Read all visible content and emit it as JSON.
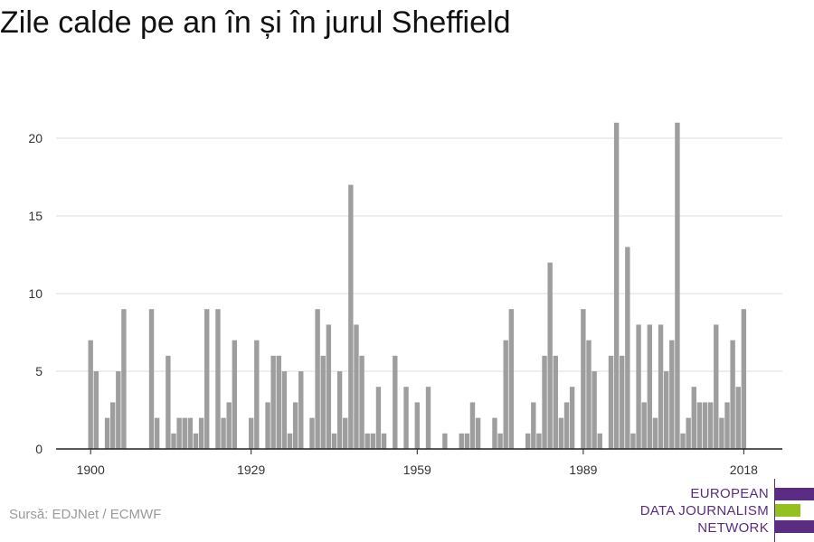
{
  "title": "Zile calde pe an în și în jurul Sheffield",
  "source": "Sursă: EDJNet / ECMWF",
  "logo": {
    "lines": [
      "EUROPEAN",
      "DATA JOURNALISM",
      "NETWORK"
    ],
    "colors": [
      "#5a2d82",
      "#94c11f",
      "#5a2d82"
    ]
  },
  "chart_data": {
    "type": "bar",
    "title": "Zile calde pe an în și în jurul Sheffield",
    "xlabel": "",
    "ylabel": "",
    "x_start": 1900,
    "x_end": 2018,
    "xticks": [
      1900,
      1929,
      1959,
      1989,
      2018
    ],
    "yticks": [
      0,
      5,
      10,
      15,
      20
    ],
    "ylim": [
      0,
      22.5
    ],
    "grid": true,
    "bar_color": "#9e9e9e",
    "values": [
      7,
      5,
      0,
      2,
      3,
      5,
      9,
      0,
      0,
      0,
      0,
      9,
      2,
      0,
      6,
      1,
      2,
      2,
      2,
      1,
      2,
      9,
      0,
      9,
      2,
      3,
      7,
      0,
      0,
      2,
      7,
      0,
      3,
      6,
      6,
      5,
      1,
      3,
      5,
      0,
      2,
      9,
      6,
      8,
      1,
      5,
      2,
      17,
      8,
      6,
      1,
      1,
      4,
      1,
      0,
      6,
      0,
      4,
      0,
      3,
      0,
      4,
      0,
      0,
      1,
      0,
      0,
      1,
      1,
      3,
      2,
      0,
      0,
      2,
      1,
      7,
      9,
      0,
      0,
      1,
      3,
      1,
      6,
      12,
      6,
      2,
      3,
      4,
      0,
      9,
      7,
      5,
      1,
      0,
      6,
      21,
      6,
      13,
      1,
      8,
      3,
      8,
      2,
      8,
      5,
      7,
      21,
      1,
      2,
      4,
      3,
      3,
      3,
      8,
      2,
      3,
      7,
      4,
      9
    ]
  }
}
